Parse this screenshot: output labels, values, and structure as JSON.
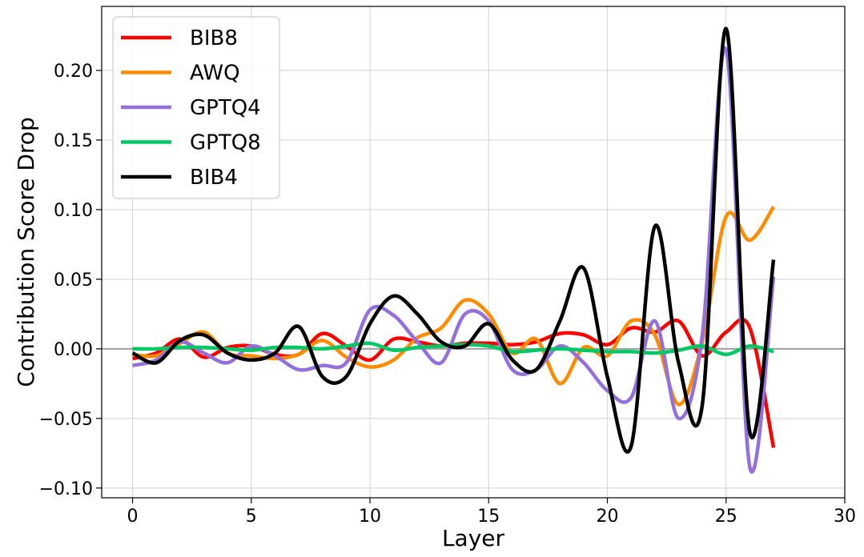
{
  "chart_data": {
    "type": "line",
    "xlabel": "Layer",
    "ylabel": "Contribution Score Drop",
    "xlim": [
      -1.3,
      30
    ],
    "ylim": [
      -0.107,
      0.246
    ],
    "xticks": [
      0,
      5,
      10,
      15,
      20,
      25,
      30
    ],
    "yticks": [
      -0.1,
      -0.05,
      0.0,
      0.05,
      0.1,
      0.15,
      0.2
    ],
    "ytick_labels": [
      "−0.10",
      "−0.05",
      "0.00",
      "0.05",
      "0.10",
      "0.15",
      "0.20"
    ],
    "grid": true,
    "zero_line": true,
    "legend_position": "top-left",
    "x": [
      0,
      1,
      2,
      3,
      4,
      5,
      6,
      7,
      8,
      9,
      10,
      11,
      12,
      13,
      14,
      15,
      16,
      17,
      18,
      19,
      20,
      21,
      22,
      23,
      24,
      25,
      26,
      27
    ],
    "series": [
      {
        "name": "BIB8",
        "color": "#ff0000",
        "values": [
          -0.007,
          -0.003,
          0.007,
          -0.006,
          0.001,
          0.002,
          -0.004,
          -0.004,
          0.011,
          0.002,
          -0.008,
          0.007,
          0.005,
          0.002,
          0.004,
          0.004,
          0.003,
          0.005,
          0.011,
          0.01,
          0.003,
          0.015,
          0.012,
          0.02,
          -0.005,
          0.012,
          0.015,
          -0.071
        ]
      },
      {
        "name": "AWQ",
        "color": "#ff8c00",
        "values": [
          -0.004,
          -0.005,
          0.004,
          0.012,
          -0.003,
          -0.005,
          -0.007,
          -0.004,
          0.006,
          -0.006,
          -0.013,
          -0.008,
          0.008,
          0.015,
          0.035,
          0.025,
          -0.003,
          0.007,
          -0.025,
          0.001,
          -0.005,
          0.02,
          0.01,
          -0.04,
          0.005,
          0.095,
          0.078,
          0.102
        ]
      },
      {
        "name": "GPTQ4",
        "color": "#9370db",
        "values": [
          -0.012,
          -0.008,
          0.005,
          -0.003,
          -0.01,
          0.002,
          -0.005,
          -0.015,
          -0.012,
          -0.01,
          0.028,
          0.024,
          0.005,
          -0.01,
          0.025,
          0.02,
          -0.015,
          -0.015,
          0.002,
          -0.01,
          -0.03,
          -0.035,
          0.02,
          -0.05,
          0.01,
          0.215,
          -0.085,
          0.052
        ]
      },
      {
        "name": "GPTQ8",
        "color": "#00c864",
        "values": [
          0.0,
          0.0,
          0.001,
          0.001,
          0.0,
          -0.001,
          0.001,
          0.001,
          0.0,
          0.002,
          0.004,
          -0.001,
          0.001,
          0.002,
          0.003,
          0.002,
          -0.002,
          -0.001,
          0.0,
          -0.001,
          -0.002,
          -0.002,
          -0.003,
          -0.001,
          0.002,
          -0.004,
          0.002,
          -0.002
        ]
      },
      {
        "name": "BIB4",
        "color": "#000000",
        "values": [
          -0.003,
          -0.01,
          0.006,
          0.01,
          -0.003,
          -0.008,
          -0.003,
          0.016,
          -0.02,
          -0.02,
          0.018,
          0.038,
          0.025,
          0.005,
          0.002,
          0.018,
          -0.008,
          -0.015,
          0.02,
          0.058,
          -0.02,
          -0.07,
          0.088,
          -0.01,
          -0.04,
          0.23,
          -0.06,
          0.064
        ]
      }
    ]
  }
}
